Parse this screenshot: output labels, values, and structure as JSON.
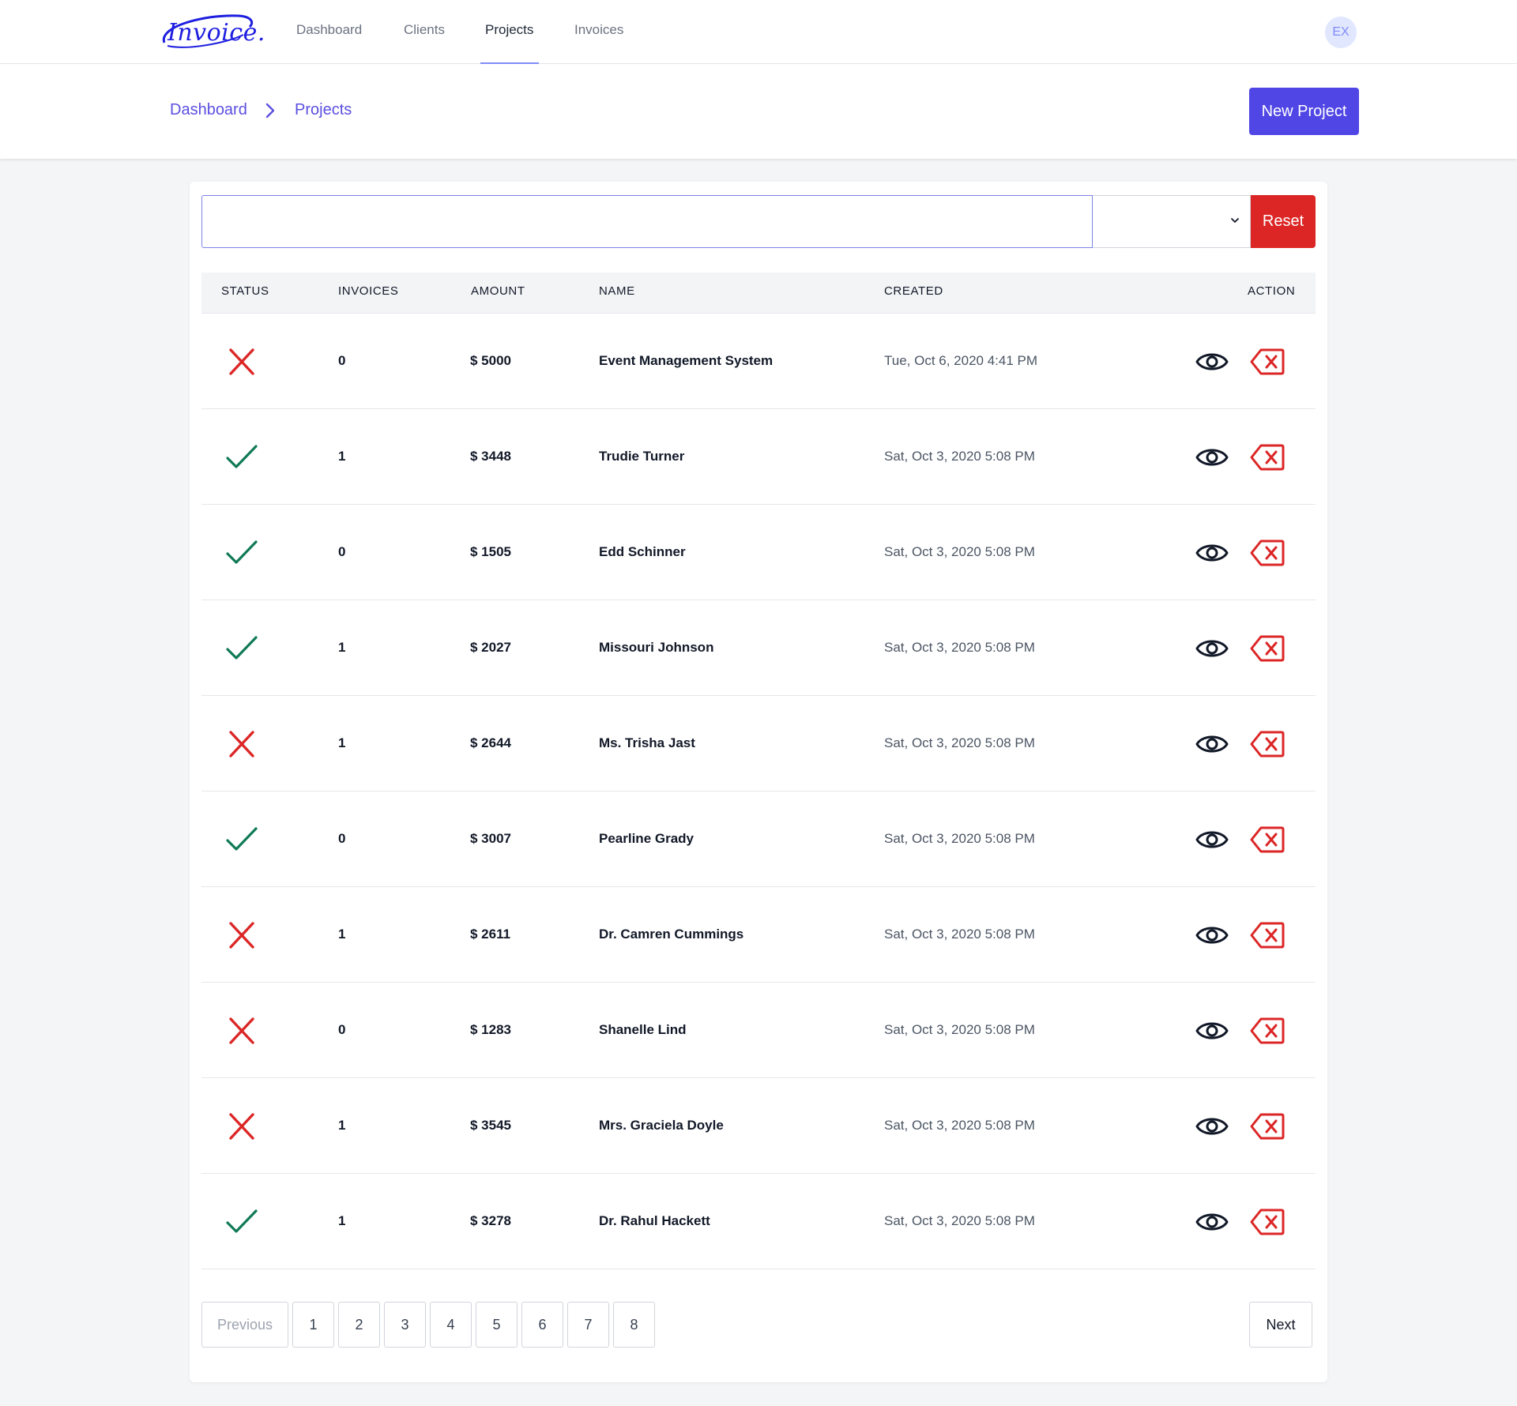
{
  "app": {
    "logo_text": "Invoice.",
    "avatar_initials": "EX",
    "brand_color": "#5046e5"
  },
  "nav": {
    "links": [
      {
        "label": "Dashboard",
        "active": false
      },
      {
        "label": "Clients",
        "active": false
      },
      {
        "label": "Projects",
        "active": true
      },
      {
        "label": "Invoices",
        "active": false
      }
    ]
  },
  "breadcrumb": [
    "Dashboard",
    "Projects"
  ],
  "toolbar": {
    "new_project_label": "New Project",
    "search_value": "",
    "filter_value": "",
    "reset_label": "Reset"
  },
  "table": {
    "headers": [
      "STATUS",
      "INVOICES",
      "AMOUNT",
      "NAME",
      "CREATED",
      "ACTION"
    ],
    "rows": [
      {
        "status": "incomplete",
        "invoices": "0",
        "amount": "$ 5000",
        "name": "Event Management System",
        "created": "Tue, Oct 6, 2020 4:41 PM"
      },
      {
        "status": "complete",
        "invoices": "1",
        "amount": "$ 3448",
        "name": "Trudie Turner",
        "created": "Sat, Oct 3, 2020 5:08 PM"
      },
      {
        "status": "complete",
        "invoices": "0",
        "amount": "$ 1505",
        "name": "Edd Schinner",
        "created": "Sat, Oct 3, 2020 5:08 PM"
      },
      {
        "status": "complete",
        "invoices": "1",
        "amount": "$ 2027",
        "name": "Missouri Johnson",
        "created": "Sat, Oct 3, 2020 5:08 PM"
      },
      {
        "status": "incomplete",
        "invoices": "1",
        "amount": "$ 2644",
        "name": "Ms. Trisha Jast",
        "created": "Sat, Oct 3, 2020 5:08 PM"
      },
      {
        "status": "complete",
        "invoices": "0",
        "amount": "$ 3007",
        "name": "Pearline Grady",
        "created": "Sat, Oct 3, 2020 5:08 PM"
      },
      {
        "status": "incomplete",
        "invoices": "1",
        "amount": "$ 2611",
        "name": "Dr. Camren Cummings",
        "created": "Sat, Oct 3, 2020 5:08 PM"
      },
      {
        "status": "incomplete",
        "invoices": "0",
        "amount": "$ 1283",
        "name": "Shanelle Lind",
        "created": "Sat, Oct 3, 2020 5:08 PM"
      },
      {
        "status": "incomplete",
        "invoices": "1",
        "amount": "$ 3545",
        "name": "Mrs. Graciela Doyle",
        "created": "Sat, Oct 3, 2020 5:08 PM"
      },
      {
        "status": "complete",
        "invoices": "1",
        "amount": "$ 3278",
        "name": "Dr. Rahul Hackett",
        "created": "Sat, Oct 3, 2020 5:08 PM"
      }
    ]
  },
  "pagination": {
    "previous_label": "Previous",
    "pages": [
      "1",
      "2",
      "3",
      "4",
      "5",
      "6",
      "7",
      "8"
    ],
    "next_label": "Next"
  },
  "colors": {
    "status_complete": "#0f7a55",
    "status_incomplete": "#dc2626",
    "delete": "#dc2626",
    "view": "#111827"
  },
  "icons": {
    "status_complete": "check-icon",
    "status_incomplete": "x-icon",
    "view": "eye-icon",
    "delete": "delete-backspace-icon"
  }
}
